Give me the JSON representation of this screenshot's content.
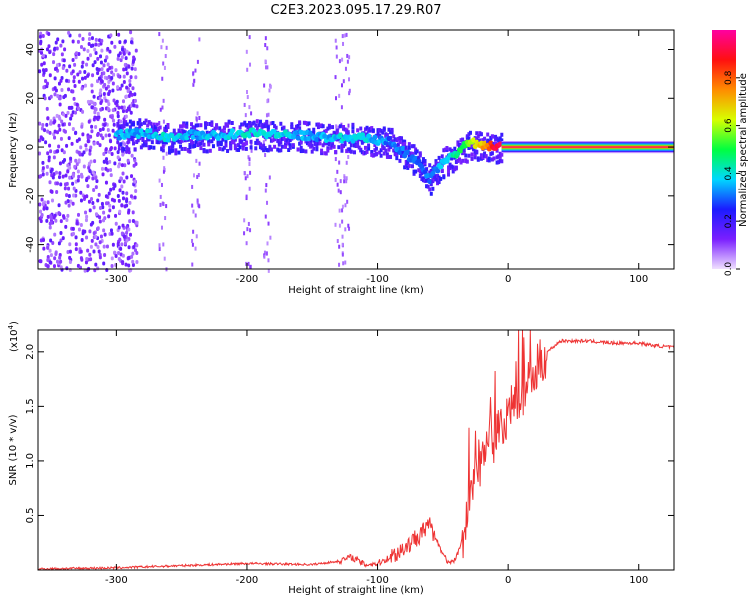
{
  "chart_data": [
    {
      "type": "heatmap",
      "title": "C2E3.2023.095.17.29.R07",
      "xlabel": "Height of straight line (km)",
      "ylabel": "Frequency (Hz)",
      "xlim": [
        -360,
        127
      ],
      "ylim": [
        -50,
        48
      ],
      "x_ticks": [
        -300,
        -200,
        -100,
        0,
        100
      ],
      "x_tick_labels": [
        "-300",
        "-200",
        "-100",
        "0",
        "100"
      ],
      "y_ticks": [
        -40,
        -20,
        0,
        20,
        40
      ],
      "y_tick_labels": [
        "-40",
        "-20",
        "0",
        "20",
        "40"
      ],
      "colorbar": {
        "label": "Normalized spectral amplitude",
        "range": [
          0,
          1
        ],
        "ticks": [
          0.0,
          0.2,
          0.4,
          0.6,
          0.8
        ],
        "tick_labels": [
          "0.0",
          "0.2",
          "0.4",
          "0.6",
          "0.8"
        ],
        "colors": [
          "#f0e0ff",
          "#7a1fff",
          "#1b1bff",
          "#00d8ff",
          "#00ff40",
          "#d8ff00",
          "#ff8c00",
          "#ff1010",
          "#ff00a0"
        ]
      },
      "ridge": {
        "x": [
          -300,
          -280,
          -260,
          -240,
          -220,
          -200,
          -180,
          -160,
          -140,
          -120,
          -100,
          -90,
          -80,
          -70,
          -60,
          -50,
          -40,
          -30,
          -20,
          -10,
          0,
          50,
          127
        ],
        "y": [
          5,
          6,
          4,
          5,
          5,
          6,
          5,
          5,
          4,
          4,
          3,
          2,
          -2,
          -6,
          -13,
          -6,
          -3,
          2,
          1,
          0,
          0,
          0,
          0
        ],
        "amplitude": [
          0.35,
          0.35,
          0.4,
          0.35,
          0.35,
          0.4,
          0.4,
          0.35,
          0.35,
          0.4,
          0.35,
          0.3,
          0.3,
          0.3,
          0.3,
          0.35,
          0.45,
          0.55,
          0.7,
          0.9,
          0.95,
          0.95,
          0.95
        ]
      }
    },
    {
      "type": "line",
      "xlabel": "Height of straight line (km)",
      "ylabel": "SNR (10 * v/v)",
      "y_multiplier": "(x10",
      "y_multiplier_exp": "4",
      "y_multiplier_close": ")",
      "xlim": [
        -360,
        127
      ],
      "ylim": [
        0,
        2.2
      ],
      "x_ticks": [
        -300,
        -200,
        -100,
        0,
        100
      ],
      "x_tick_labels": [
        "-300",
        "-200",
        "-100",
        "0",
        "100"
      ],
      "y_ticks": [
        0.5,
        1.0,
        1.5,
        2.0
      ],
      "y_tick_labels": [
        "0.5",
        "1.0",
        "1.5",
        "2.0"
      ],
      "color": "#ee3333",
      "x": [
        -360,
        -300,
        -250,
        -200,
        -150,
        -130,
        -120,
        -110,
        -100,
        -90,
        -80,
        -70,
        -65,
        -60,
        -55,
        -50,
        -45,
        -40,
        -35,
        -30,
        -25,
        -20,
        -15,
        -10,
        -5,
        0,
        10,
        20,
        30,
        40,
        60,
        80,
        100,
        110,
        127
      ],
      "y": [
        0.01,
        0.02,
        0.04,
        0.06,
        0.05,
        0.08,
        0.12,
        0.05,
        0.06,
        0.12,
        0.2,
        0.3,
        0.35,
        0.4,
        0.28,
        0.15,
        0.05,
        0.1,
        0.3,
        0.6,
        0.9,
        1.0,
        1.1,
        1.2,
        1.3,
        1.4,
        1.6,
        1.8,
        2.0,
        2.1,
        2.1,
        2.08,
        2.08,
        2.06,
        2.04
      ]
    }
  ]
}
